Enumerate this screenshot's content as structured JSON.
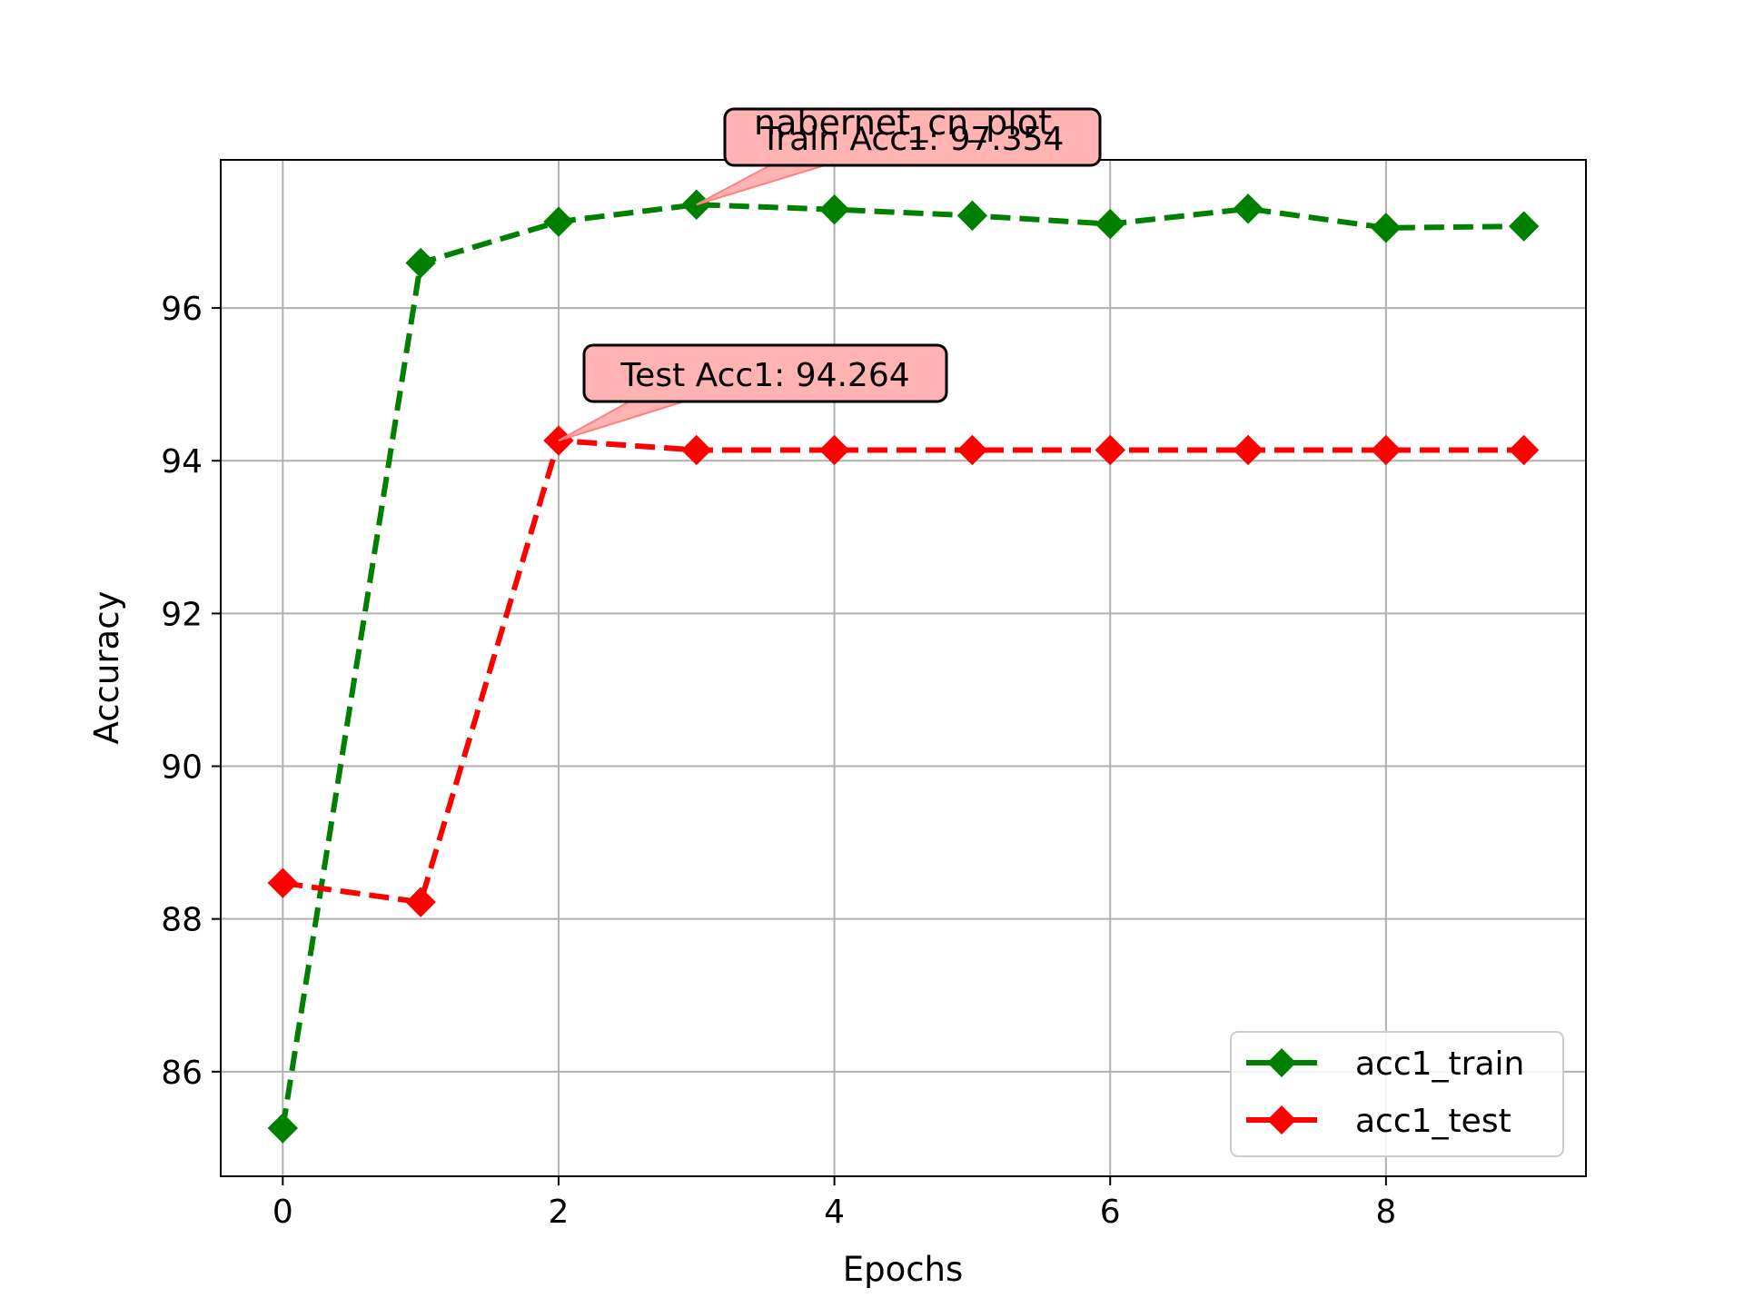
{
  "chart_data": {
    "type": "line",
    "title": "nabernet_cn_plot",
    "xlabel": "Epochs",
    "ylabel": "Accuracy",
    "xlim": [
      -0.45,
      9.45
    ],
    "ylim": [
      84.63,
      97.94
    ],
    "grid": true,
    "x": [
      0,
      1,
      2,
      3,
      4,
      5,
      6,
      7,
      8,
      9
    ],
    "x_ticks": [
      "0",
      "2",
      "4",
      "6",
      "8"
    ],
    "y_ticks": [
      "86",
      "88",
      "90",
      "92",
      "94",
      "96"
    ],
    "legend_position": "lower-right",
    "series": [
      {
        "name": "acc1_train",
        "color": "#008000",
        "values": [
          85.26,
          96.59,
          97.13,
          97.354,
          97.29,
          97.21,
          97.1,
          97.3,
          97.05,
          97.07
        ]
      },
      {
        "name": "acc1_test",
        "color": "#ff0000",
        "values": [
          88.47,
          88.22,
          94.264,
          94.14,
          94.14,
          94.14,
          94.14,
          94.14,
          94.14,
          94.14
        ]
      }
    ],
    "annotations": [
      {
        "text": "Train Acc1: 97.354",
        "x": 3,
        "y": 97.354,
        "series": "acc1_train"
      },
      {
        "text": "Test Acc1: 94.264",
        "x": 2,
        "y": 94.264,
        "series": "acc1_test"
      }
    ],
    "annotation_color": "#ffb3b3"
  }
}
